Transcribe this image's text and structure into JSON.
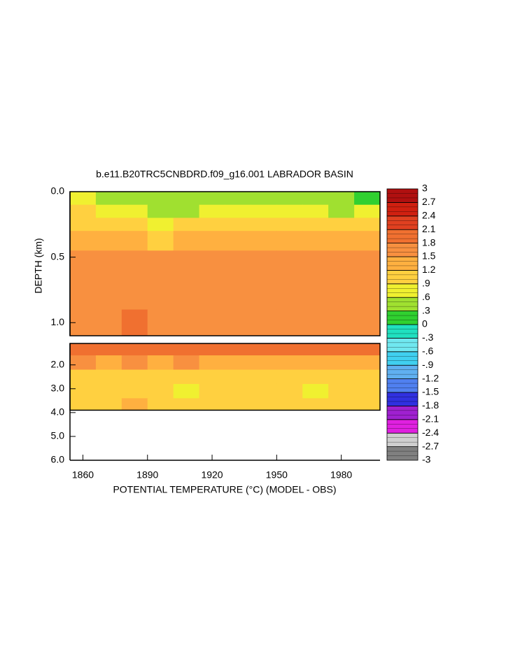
{
  "chart_data": {
    "type": "contour",
    "title": "b.e11.B20TRC5CNBDRD.f09_g16.001 LABRADOR BASIN",
    "xlabel": "POTENTIAL TEMPERATURE (°C) (MODEL - OBS)",
    "ylabel": "DEPTH (km)",
    "xlim": [
      1854,
      1998
    ],
    "xticks": [
      1860,
      1890,
      1920,
      1950,
      1980
    ],
    "x_edges": [
      1854,
      1866,
      1878,
      1890,
      1902,
      1914,
      1926,
      1938,
      1950,
      1962,
      1974,
      1986,
      1998
    ],
    "panels": [
      {
        "ylim": [
          0,
          1.1
        ],
        "yticks": [
          {
            "value": 0,
            "label": "0.0"
          },
          0.5,
          {
            "value": 1,
            "label": "1.0"
          }
        ],
        "depth_edges": [
          0,
          0.1,
          0.2,
          0.3,
          0.45,
          0.7,
          0.9,
          1.1
        ],
        "values": [
          [
            0.6,
            0.4,
            0.4,
            0.3,
            0.3,
            0.5,
            0.4,
            0.4,
            0.5,
            0.4,
            0.3,
            0.2
          ],
          [
            0.9,
            0.6,
            0.6,
            0.4,
            0.5,
            0.8,
            0.7,
            0.7,
            0.7,
            0.6,
            0.5,
            0.6
          ],
          [
            1.1,
            0.9,
            0.9,
            0.7,
            0.9,
            1.0,
            1.0,
            0.9,
            0.9,
            0.9,
            0.9,
            0.9
          ],
          [
            1.3,
            1.2,
            1.2,
            1.1,
            1.2,
            1.3,
            1.3,
            1.2,
            1.3,
            1.2,
            1.2,
            1.2
          ],
          [
            1.5,
            1.5,
            1.5,
            1.6,
            1.5,
            1.5,
            1.6,
            1.5,
            1.5,
            1.5,
            1.5,
            1.5
          ],
          [
            1.6,
            1.6,
            1.7,
            1.6,
            1.6,
            1.6,
            1.6,
            1.6,
            1.6,
            1.6,
            1.6,
            1.6
          ],
          [
            1.7,
            1.6,
            1.8,
            1.7,
            1.7,
            1.7,
            1.6,
            1.7,
            1.7,
            1.6,
            1.6,
            1.6
          ]
        ]
      },
      {
        "ylim": [
          1.1,
          6
        ],
        "yticks": [
          {
            "value": 2,
            "label": "2.0"
          },
          {
            "value": 3,
            "label": "3.0"
          },
          {
            "value": 4,
            "label": "4.0"
          },
          {
            "value": 5,
            "label": "5.0"
          },
          {
            "value": 6,
            "label": "6.0"
          }
        ],
        "depth_edges": [
          1.1,
          1.6,
          2.2,
          2.8,
          3.4,
          3.9
        ],
        "values": [
          [
            1.9,
            1.8,
            2.0,
            1.8,
            1.9,
            1.8,
            1.8,
            1.8,
            1.8,
            1.8,
            1.8,
            1.8
          ],
          [
            1.5,
            1.4,
            1.5,
            1.4,
            1.5,
            1.4,
            1.3,
            1.4,
            1.4,
            1.4,
            1.4,
            1.4
          ],
          [
            1.0,
            1.0,
            1.1,
            1.0,
            1.0,
            0.9,
            1.0,
            1.0,
            1.0,
            0.9,
            0.9,
            1.0
          ],
          [
            1.0,
            0.9,
            1.1,
            0.9,
            0.8,
            0.9,
            0.9,
            1.0,
            0.9,
            0.8,
            0.9,
            1.0
          ],
          [
            1.0,
            1.0,
            1.2,
            1.0,
            1.0,
            1.0,
            1.0,
            1.0,
            1.0,
            1.0,
            1.0,
            1.1
          ]
        ]
      }
    ],
    "colorbar": {
      "ticks": [
        -3,
        -2.7,
        -2.4,
        -2.1,
        -1.8,
        -1.5,
        -1.2,
        {
          "value": -0.9,
          "label": "-.9"
        },
        {
          "value": -0.6,
          "label": "-.6"
        },
        {
          "value": -0.3,
          "label": "-.3"
        },
        0,
        {
          "value": 0.3,
          "label": ".3"
        },
        {
          "value": 0.6,
          "label": ".6"
        },
        {
          "value": 0.9,
          "label": ".9"
        },
        1.2,
        1.5,
        1.8,
        2.1,
        2.4,
        2.7,
        3
      ],
      "colors": [
        "#808080",
        "#d0d0d0",
        "#e020e0",
        "#a020d0",
        "#3030e0",
        "#5080f0",
        "#60b0f0",
        "#40d0f0",
        "#70e8f0",
        "#20e0c0",
        "#30d030",
        "#a0e030",
        "#f0f030",
        "#ffd040",
        "#ffb040",
        "#f89040",
        "#f07030",
        "#e04020",
        "#d02010",
        "#b01010"
      ]
    }
  }
}
